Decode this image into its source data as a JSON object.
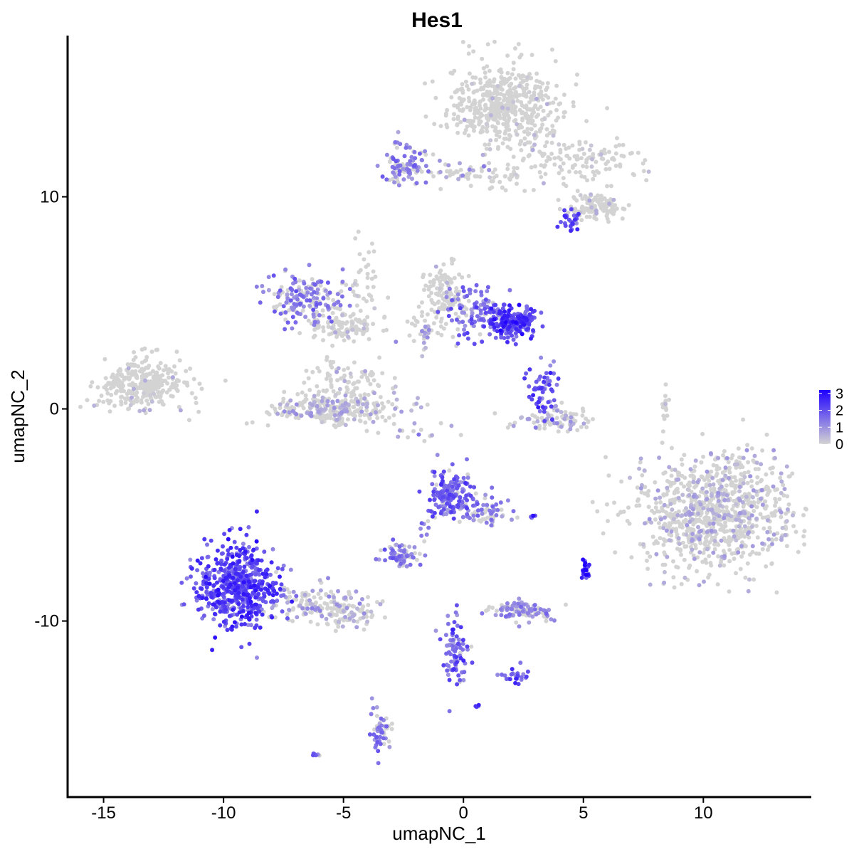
{
  "chart_data": {
    "type": "scatter",
    "title": "Hes1",
    "xlabel": "umapNC_1",
    "ylabel": "umapNC_2",
    "xlim": [
      -16.5,
      14.5
    ],
    "ylim": [
      -18.3,
      17.6
    ],
    "x_ticks": [
      -15,
      -10,
      -5,
      0,
      5,
      10
    ],
    "x_tick_labels": [
      "-15",
      "-10",
      "-5",
      "0",
      "5",
      "10"
    ],
    "y_ticks": [
      -10,
      0,
      10
    ],
    "y_tick_labels": [
      "-10",
      "0",
      "10"
    ],
    "grid": false,
    "legend_position": "right",
    "color_scale": {
      "low": "#d3d3d3",
      "high": "#1f00ff",
      "min": 0,
      "max": 3.2,
      "ticks": [
        0,
        1,
        2,
        3
      ],
      "tick_labels": [
        "0",
        "1",
        "2",
        "3"
      ]
    },
    "clusters": [
      {
        "cx": 1.8,
        "cy": 14.3,
        "sx": 1.2,
        "sy": 1.0,
        "n": 520,
        "expr": 0.02
      },
      {
        "cx": 4.6,
        "cy": 11.6,
        "sx": 1.3,
        "sy": 0.6,
        "n": 130,
        "expr": 0.03
      },
      {
        "cx": 5.6,
        "cy": 9.5,
        "sx": 0.6,
        "sy": 0.35,
        "n": 120,
        "expr": 0.04
      },
      {
        "cx": 4.4,
        "cy": 9.0,
        "sx": 0.3,
        "sy": 0.3,
        "n": 25,
        "expr": 0.7
      },
      {
        "cx": -2.4,
        "cy": 11.5,
        "sx": 0.5,
        "sy": 0.5,
        "n": 90,
        "expr": 0.45
      },
      {
        "cx": -0.5,
        "cy": 11.2,
        "sx": 0.8,
        "sy": 0.2,
        "n": 40,
        "expr": 0.25
      },
      {
        "cx": 1.3,
        "cy": 11.0,
        "sx": 0.7,
        "sy": 0.3,
        "n": 35,
        "expr": 0.04
      },
      {
        "cx": -13.3,
        "cy": 1.2,
        "sx": 0.9,
        "sy": 0.6,
        "n": 320,
        "expr": 0.03
      },
      {
        "cx": -6.5,
        "cy": 5.2,
        "sx": 0.8,
        "sy": 0.55,
        "n": 170,
        "expr": 0.45
      },
      {
        "cx": -5.0,
        "cy": 3.9,
        "sx": 0.7,
        "sy": 0.35,
        "n": 110,
        "expr": 0.06
      },
      {
        "cx": -4.2,
        "cy": 5.5,
        "sx": 0.4,
        "sy": 1.2,
        "n": 40,
        "expr": 0.04
      },
      {
        "cx": -5.4,
        "cy": 0.0,
        "sx": 1.2,
        "sy": 0.4,
        "n": 300,
        "expr": 0.18
      },
      {
        "cx": -4.8,
        "cy": 1.4,
        "sx": 0.9,
        "sy": 0.5,
        "n": 80,
        "expr": 0.08
      },
      {
        "cx": -0.8,
        "cy": 5.4,
        "sx": 0.4,
        "sy": 0.7,
        "n": 110,
        "expr": 0.08
      },
      {
        "cx": 0.5,
        "cy": 4.6,
        "sx": 0.6,
        "sy": 0.5,
        "n": 110,
        "expr": 0.55
      },
      {
        "cx": 2.0,
        "cy": 4.1,
        "sx": 0.5,
        "sy": 0.4,
        "n": 190,
        "expr": 0.85
      },
      {
        "cx": -1.6,
        "cy": 3.8,
        "sx": 0.5,
        "sy": 0.4,
        "n": 40,
        "expr": 0.2
      },
      {
        "cx": 3.3,
        "cy": 0.7,
        "sx": 0.3,
        "sy": 0.7,
        "n": 60,
        "expr": 0.7
      },
      {
        "cx": 3.7,
        "cy": -0.5,
        "sx": 0.9,
        "sy": 0.3,
        "n": 90,
        "expr": 0.18
      },
      {
        "cx": 10.5,
        "cy": -4.8,
        "sx": 1.6,
        "sy": 1.3,
        "n": 950,
        "expr": 0.15
      },
      {
        "cx": 8.4,
        "cy": 0.3,
        "sx": 0.1,
        "sy": 0.5,
        "n": 15,
        "expr": 0.02
      },
      {
        "cx": -9.4,
        "cy": -8.3,
        "sx": 0.8,
        "sy": 1.0,
        "n": 560,
        "expr": 0.78
      },
      {
        "cx": -6.0,
        "cy": -9.2,
        "sx": 1.3,
        "sy": 0.4,
        "n": 140,
        "expr": 0.25
      },
      {
        "cx": -4.8,
        "cy": -9.8,
        "sx": 0.6,
        "sy": 0.3,
        "n": 60,
        "expr": 0.12
      },
      {
        "cx": -0.4,
        "cy": -4.1,
        "sx": 0.5,
        "sy": 0.55,
        "n": 190,
        "expr": 0.6
      },
      {
        "cx": 0.9,
        "cy": -4.9,
        "sx": 0.5,
        "sy": 0.3,
        "n": 60,
        "expr": 0.4
      },
      {
        "cx": -2.6,
        "cy": -6.9,
        "sx": 0.4,
        "sy": 0.25,
        "n": 70,
        "expr": 0.45
      },
      {
        "cx": -1.6,
        "cy": -5.8,
        "sx": 0.15,
        "sy": 0.35,
        "n": 8,
        "expr": 0.5
      },
      {
        "cx": 2.4,
        "cy": -9.5,
        "sx": 0.6,
        "sy": 0.25,
        "n": 110,
        "expr": 0.35
      },
      {
        "cx": -0.3,
        "cy": -11.3,
        "sx": 0.3,
        "sy": 0.9,
        "n": 80,
        "expr": 0.65
      },
      {
        "cx": 2.1,
        "cy": -12.6,
        "sx": 0.3,
        "sy": 0.2,
        "n": 25,
        "expr": 0.7
      },
      {
        "cx": 5.1,
        "cy": -7.6,
        "sx": 0.1,
        "sy": 0.25,
        "n": 20,
        "expr": 1.0
      },
      {
        "cx": -3.5,
        "cy": -15.0,
        "sx": 0.2,
        "sy": 0.6,
        "n": 50,
        "expr": 0.45
      },
      {
        "cx": -6.1,
        "cy": -16.3,
        "sx": 0.1,
        "sy": 0.05,
        "n": 6,
        "expr": 0.6
      },
      {
        "cx": 0.6,
        "cy": -14.0,
        "sx": 0.05,
        "sy": 0.05,
        "n": 4,
        "expr": 0.8
      },
      {
        "cx": 2.8,
        "cy": -5.1,
        "sx": 0.1,
        "sy": 0.05,
        "n": 5,
        "expr": 0.8
      },
      {
        "cx": -1.8,
        "cy": -1.0,
        "sx": 0.8,
        "sy": 0.3,
        "n": 15,
        "expr": 0.3
      }
    ]
  }
}
